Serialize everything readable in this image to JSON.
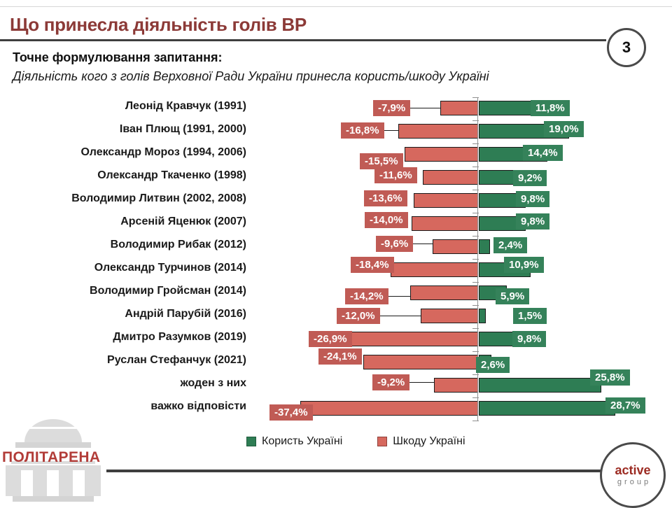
{
  "slide": {
    "title": "Що принесла діяльність голів ВР",
    "slide_number": "3",
    "question_label": "Точне формулювання запитання:",
    "question_text": "Діяльність кого з голів Верховної Ради України принесла користь/шкоду Україні"
  },
  "chart_data": {
    "type": "bar",
    "orientation": "horizontal-diverging",
    "title": "Що принесла діяльність голів ВР",
    "categories": [
      "Леонід Кравчук (1991)",
      "Іван Плющ (1991, 2000)",
      "Олександр Мороз (1994, 2006)",
      "Олександр Ткаченко (1998)",
      "Володимир Литвин (2002, 2008)",
      "Арсеній Яценюк (2007)",
      "Володимир Рибак (2012)",
      "Олександр Турчинов (2014)",
      "Володимир Гройсман (2014)",
      "Андрій Парубій (2016)",
      "Дмитро Разумков (2019)",
      "Руслан Стефанчук (2021)",
      "жоден з них",
      "важко відповісти"
    ],
    "series": [
      {
        "name": "Користь Україні",
        "values": [
          11.8,
          19.0,
          14.4,
          9.2,
          9.8,
          9.8,
          2.4,
          10.9,
          5.9,
          1.5,
          9.8,
          2.6,
          25.8,
          28.7
        ],
        "labels": [
          "11,8%",
          "19,0%",
          "14,4%",
          "9,2%",
          "9,8%",
          "9,8%",
          "2,4%",
          "10,9%",
          "5,9%",
          "1,5%",
          "9,8%",
          "2,6%",
          "25,8%",
          "28,7%"
        ]
      },
      {
        "name": "Шкоду Україні",
        "values": [
          -7.9,
          -16.8,
          -15.5,
          -11.6,
          -13.6,
          -14.0,
          -9.6,
          -18.4,
          -14.2,
          -12.0,
          -26.9,
          -24.1,
          -9.2,
          -37.4
        ],
        "labels": [
          "-7,9%",
          "-16,8%",
          "-15,5%",
          "-11,6%",
          "-13,6%",
          "-14,0%",
          "-9,6%",
          "-18,4%",
          "-14,2%",
          "-12,0%",
          "-26,9%",
          "-24,1%",
          "-9,2%",
          "-37,4%"
        ]
      }
    ],
    "xlim": [
      -40,
      30
    ],
    "zero_axis": true,
    "grid": false,
    "legend_position": "bottom"
  },
  "colors": {
    "title_text": "#8c3a37",
    "benefit_bar": "#2e7d54",
    "benefit_label_bg": "#35825a",
    "harm_bar": "#d6685e",
    "harm_label_bg": "#c05b55",
    "bar_border": "#1a1a1a",
    "rule": "#3f3f3f"
  },
  "footer": {
    "politarena": "ПОЛІТАРЕНА",
    "active_line1": "active",
    "active_line2": "group"
  }
}
